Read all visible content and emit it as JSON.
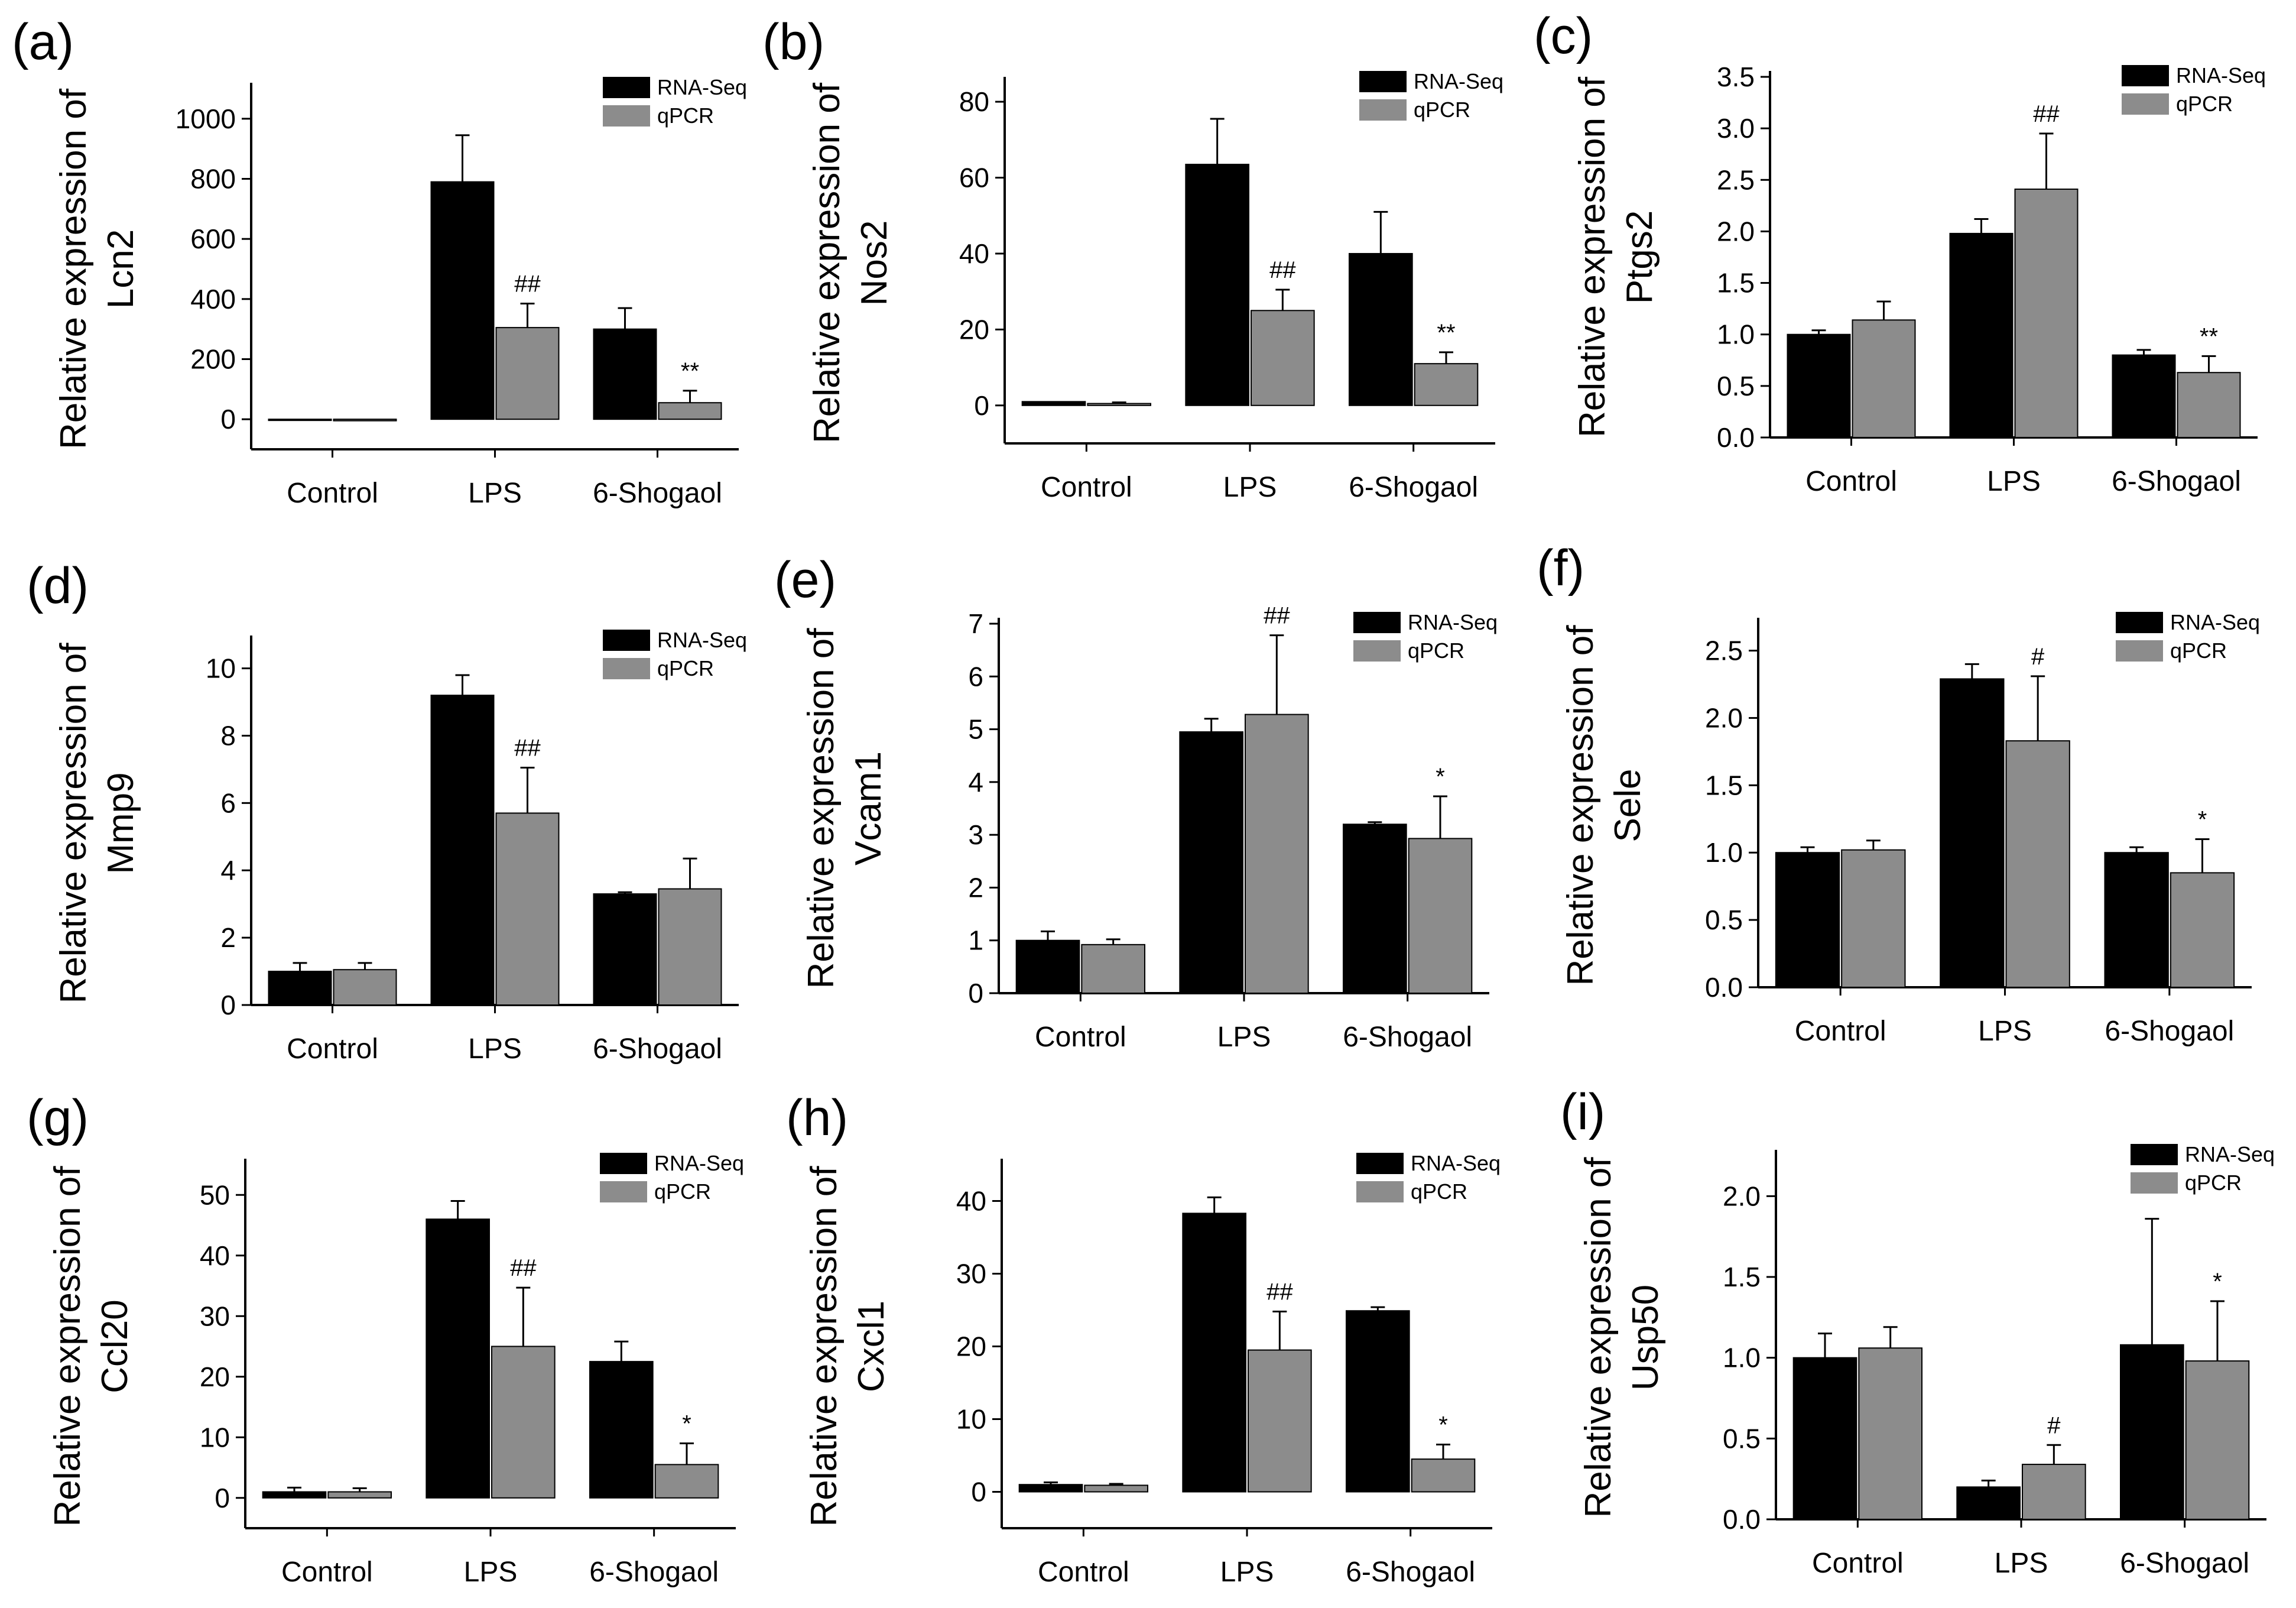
{
  "colors": {
    "rna_seq": "#000000",
    "qpcr": "#8c8c8c",
    "axis": "#000000",
    "background": "#ffffff"
  },
  "legend": [
    "RNA-Seq",
    "qPCR"
  ],
  "chart_data": [
    {
      "type": "bar",
      "panel": "(a)",
      "ylabel_line1": "Relative expression of",
      "ylabel_line2": "Lcn2",
      "categories": [
        "Control",
        "LPS",
        "6-Shogaol"
      ],
      "ylim": [
        -100,
        1100
      ],
      "yticks": [
        0,
        200,
        400,
        600,
        800,
        1000
      ],
      "series": [
        {
          "name": "RNA-Seq",
          "values": [
            0,
            790,
            300
          ],
          "errors": [
            0,
            155,
            70
          ]
        },
        {
          "name": "qPCR",
          "values": [
            -5,
            305,
            55
          ],
          "errors": [
            0,
            80,
            40
          ]
        }
      ],
      "annotations": [
        "",
        "##",
        "**"
      ]
    },
    {
      "type": "bar",
      "panel": "(b)",
      "ylabel_line1": "Relative expression of",
      "ylabel_line2": "Nos2",
      "categories": [
        "Control",
        "LPS",
        "6-Shogaol"
      ],
      "ylim": [
        -10,
        85
      ],
      "yticks": [
        0,
        20,
        40,
        60,
        80
      ],
      "series": [
        {
          "name": "RNA-Seq",
          "values": [
            1,
            63.5,
            40
          ],
          "errors": [
            0,
            12,
            11
          ]
        },
        {
          "name": "qPCR",
          "values": [
            0.5,
            25,
            11
          ],
          "errors": [
            0.3,
            5.5,
            3
          ]
        }
      ],
      "annotations": [
        "",
        "##",
        "**"
      ]
    },
    {
      "type": "bar",
      "panel": "(c)",
      "ylabel_line1": "Relative expression of",
      "ylabel_line2": "Ptgs2",
      "categories": [
        "Control",
        "LPS",
        "6-Shogaol"
      ],
      "ylim": [
        0,
        3.5
      ],
      "yticks": [
        0.0,
        0.5,
        1.0,
        1.5,
        2.0,
        2.5,
        3.0,
        3.5
      ],
      "series": [
        {
          "name": "RNA-Seq",
          "values": [
            1.0,
            1.98,
            0.8
          ],
          "errors": [
            0.04,
            0.14,
            0.05
          ]
        },
        {
          "name": "qPCR",
          "values": [
            1.14,
            2.41,
            0.63
          ],
          "errors": [
            0.18,
            0.54,
            0.16
          ]
        }
      ],
      "annotations": [
        "",
        "##",
        "**"
      ]
    },
    {
      "type": "bar",
      "panel": "(d)",
      "ylabel_line1": "Relative expression of",
      "ylabel_line2": "Mmp9",
      "categories": [
        "Control",
        "LPS",
        "6-Shogaol"
      ],
      "ylim": [
        0,
        10.8
      ],
      "yticks": [
        0,
        2,
        4,
        6,
        8,
        10
      ],
      "series": [
        {
          "name": "RNA-Seq",
          "values": [
            1.0,
            9.2,
            3.3
          ],
          "errors": [
            0.25,
            0.6,
            0.05
          ]
        },
        {
          "name": "qPCR",
          "values": [
            1.05,
            5.7,
            3.45
          ],
          "errors": [
            0.2,
            1.35,
            0.9
          ]
        }
      ],
      "annotations": [
        "",
        "##",
        ""
      ]
    },
    {
      "type": "bar",
      "panel": "(e)",
      "ylabel_line1": "Relative expression of",
      "ylabel_line2": "Vcam1",
      "categories": [
        "Control",
        "LPS",
        "6-Shogaol"
      ],
      "ylim": [
        0,
        7
      ],
      "yticks": [
        0,
        1,
        2,
        3,
        4,
        5,
        6,
        7
      ],
      "series": [
        {
          "name": "RNA-Seq",
          "values": [
            1.0,
            4.95,
            3.2
          ],
          "errors": [
            0.17,
            0.25,
            0.04
          ]
        },
        {
          "name": "qPCR",
          "values": [
            0.92,
            5.28,
            2.93
          ],
          "errors": [
            0.1,
            1.5,
            0.8
          ]
        }
      ],
      "annotations": [
        "",
        "##",
        "*"
      ]
    },
    {
      "type": "bar",
      "panel": "(f)",
      "ylabel_line1": "Relative expression of",
      "ylabel_line2": "Sele",
      "categories": [
        "Control",
        "LPS",
        "6-Shogaol"
      ],
      "ylim": [
        0,
        2.7
      ],
      "yticks": [
        0.0,
        0.5,
        1.0,
        1.5,
        2.0,
        2.5
      ],
      "series": [
        {
          "name": "RNA-Seq",
          "values": [
            1.0,
            2.29,
            1.0
          ],
          "errors": [
            0.04,
            0.11,
            0.04
          ]
        },
        {
          "name": "qPCR",
          "values": [
            1.02,
            1.83,
            0.85
          ],
          "errors": [
            0.07,
            0.48,
            0.25
          ]
        }
      ],
      "annotations": [
        "",
        "#",
        "*"
      ]
    },
    {
      "type": "bar",
      "panel": "(g)",
      "ylabel_line1": "Relative expression of",
      "ylabel_line2": "Ccl20",
      "categories": [
        "Control",
        "LPS",
        "6-Shogaol"
      ],
      "ylim": [
        -5,
        55
      ],
      "yticks": [
        0,
        10,
        20,
        30,
        40,
        50
      ],
      "series": [
        {
          "name": "RNA-Seq",
          "values": [
            1.0,
            46,
            22.5
          ],
          "errors": [
            0.7,
            3,
            3.3
          ]
        },
        {
          "name": "qPCR",
          "values": [
            1.0,
            25,
            5.5
          ],
          "errors": [
            0.6,
            9.7,
            3.5
          ]
        }
      ],
      "annotations": [
        "",
        "##",
        "*"
      ]
    },
    {
      "type": "bar",
      "panel": "(h)",
      "ylabel_line1": "Relative expression of",
      "ylabel_line2": "Cxcl1",
      "categories": [
        "Control",
        "LPS",
        "6-Shogaol"
      ],
      "ylim": [
        -5,
        45
      ],
      "yticks": [
        0,
        10,
        20,
        30,
        40
      ],
      "series": [
        {
          "name": "RNA-Seq",
          "values": [
            1.0,
            38.3,
            24.9
          ],
          "errors": [
            0.3,
            2.2,
            0.5
          ]
        },
        {
          "name": "qPCR",
          "values": [
            0.9,
            19.5,
            4.5
          ],
          "errors": [
            0.2,
            5.3,
            2
          ]
        }
      ],
      "annotations": [
        "",
        "##",
        "*"
      ]
    },
    {
      "type": "bar",
      "panel": "(i)",
      "ylabel_line1": "Relative expression of",
      "ylabel_line2": "Usp50",
      "categories": [
        "Control",
        "LPS",
        "6-Shogaol"
      ],
      "ylim": [
        0,
        2.25
      ],
      "yticks": [
        0.0,
        0.5,
        1.0,
        1.5,
        2.0
      ],
      "series": [
        {
          "name": "RNA-Seq",
          "values": [
            1.0,
            0.2,
            1.08
          ],
          "errors": [
            0.15,
            0.04,
            0.78
          ]
        },
        {
          "name": "qPCR",
          "values": [
            1.06,
            0.34,
            0.98
          ],
          "errors": [
            0.13,
            0.12,
            0.37
          ]
        }
      ],
      "annotations": [
        "",
        "#",
        "*"
      ]
    }
  ]
}
